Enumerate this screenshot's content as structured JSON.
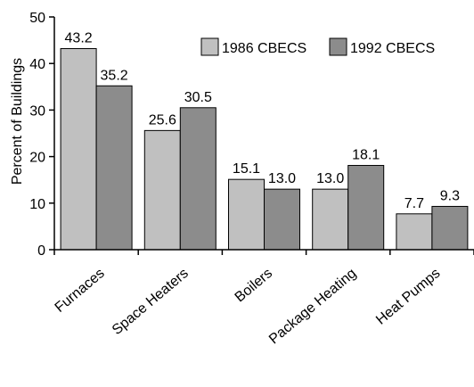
{
  "chart_data": {
    "type": "bar",
    "title": "",
    "xlabel": "",
    "ylabel": "Percent of Buildings",
    "ylim": [
      0,
      50
    ],
    "yticks": [
      0,
      10,
      20,
      30,
      40,
      50
    ],
    "grid": false,
    "legend_position": "top-right",
    "categories": [
      "Furnaces",
      "Space Heaters",
      "Boilers",
      "Package Heating",
      "Heat Pumps"
    ],
    "series": [
      {
        "name": "1986 CBECS",
        "color": "#c0c0c0",
        "values": [
          43.2,
          25.6,
          15.1,
          13.0,
          7.7
        ],
        "labels": [
          "43.2",
          "25.6",
          "15.1",
          "13.0",
          "7.7"
        ]
      },
      {
        "name": "1992 CBECS",
        "color": "#8c8c8c",
        "values": [
          35.2,
          30.5,
          13.0,
          18.1,
          9.3
        ],
        "labels": [
          "35.2",
          "30.5",
          "13.0",
          "18.1",
          "9.3"
        ]
      }
    ]
  }
}
